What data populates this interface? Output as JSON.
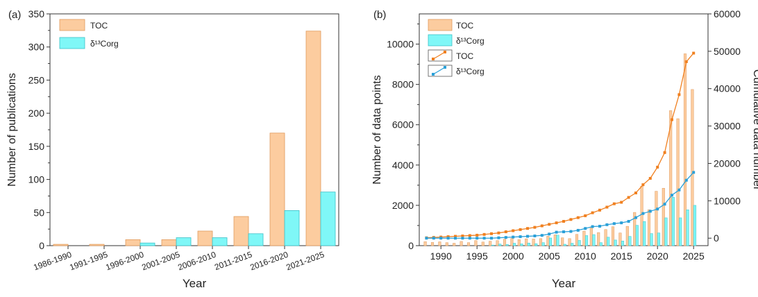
{
  "colors": {
    "toc_fill": "#fccc9f",
    "toc_stroke": "#e09a5c",
    "d13_fill": "#7ff7f7",
    "d13_stroke": "#3cc0c8",
    "toc_line": "#f08020",
    "d13_line": "#2aa0d8"
  },
  "chart_data": [
    {
      "type": "bar",
      "panel_label": "(a)",
      "categories": [
        "1986-1990",
        "1991-1995",
        "1996-2000",
        "2001-2005",
        "2006-2010",
        "2011-2015",
        "2016-2020",
        "2021-2025"
      ],
      "series": [
        {
          "name": "TOC",
          "values": [
            2,
            2,
            9,
            9,
            22,
            44,
            170,
            324
          ]
        },
        {
          "name": "δ¹³Corg",
          "values": [
            0,
            0,
            4,
            12,
            12,
            18,
            53,
            81
          ]
        }
      ],
      "xlabel": "Year",
      "ylabel": "Number of publications",
      "ylim": [
        0,
        350
      ],
      "yticks": [
        0,
        50,
        100,
        150,
        200,
        250,
        300,
        350
      ],
      "legend": "top-left",
      "grid": false
    },
    {
      "type": "bar",
      "panel_label": "(b)",
      "x": [
        1988,
        1989,
        1990,
        1991,
        1992,
        1993,
        1994,
        1995,
        1996,
        1997,
        1998,
        1999,
        2000,
        2001,
        2002,
        2003,
        2004,
        2005,
        2006,
        2007,
        2008,
        2009,
        2010,
        2011,
        2012,
        2013,
        2014,
        2015,
        2016,
        2017,
        2018,
        2019,
        2020,
        2021,
        2022,
        2023,
        2024,
        2025
      ],
      "series": [
        {
          "name": "TOC",
          "kind": "bar",
          "axis": "left",
          "values": [
            200,
            160,
            190,
            150,
            120,
            210,
            150,
            250,
            180,
            220,
            250,
            320,
            360,
            300,
            340,
            330,
            350,
            470,
            540,
            390,
            350,
            560,
            720,
            880,
            650,
            800,
            940,
            630,
            960,
            1650,
            2950,
            1780,
            2700,
            2850,
            6700,
            6300,
            9520,
            7750
          ]
        },
        {
          "name": "δ¹³Corg",
          "kind": "bar",
          "axis": "left",
          "values": [
            0,
            0,
            0,
            0,
            0,
            0,
            0,
            0,
            0,
            30,
            80,
            60,
            120,
            90,
            130,
            100,
            150,
            380,
            520,
            70,
            120,
            260,
            500,
            550,
            150,
            420,
            280,
            230,
            460,
            1010,
            1200,
            600,
            630,
            1380,
            2400,
            1380,
            1780,
            2000
          ]
        },
        {
          "name": "TOC",
          "kind": "line",
          "axis": "right",
          "values": [
            100,
            200,
            300,
            400,
            500,
            600,
            700,
            800,
            1000,
            1200,
            1400,
            1700,
            2000,
            2300,
            2600,
            2900,
            3300,
            3700,
            4100,
            4500,
            5000,
            5500,
            6000,
            6800,
            7500,
            8300,
            9200,
            9600,
            10900,
            12100,
            14300,
            16000,
            19000,
            22900,
            31700,
            38400,
            47200,
            49500
          ]
        },
        {
          "name": "δ¹³Corg",
          "kind": "line",
          "axis": "right",
          "values": [
            0,
            0,
            0,
            0,
            0,
            0,
            0,
            0,
            0,
            0,
            100,
            200,
            300,
            400,
            500,
            600,
            750,
            1100,
            1600,
            1700,
            1800,
            2100,
            2600,
            3100,
            3200,
            3600,
            3900,
            4100,
            4500,
            5500,
            6600,
            7200,
            7800,
            9100,
            11500,
            12900,
            15500,
            17600
          ]
        }
      ],
      "xlabel": "Year",
      "ylabel": "Number of data points",
      "ylabel_right": "Cumulative data number",
      "xlim": [
        1987,
        2027
      ],
      "xticks": [
        1990,
        1995,
        2000,
        2005,
        2010,
        2015,
        2020,
        2025
      ],
      "ylim": [
        0,
        11500
      ],
      "yticks": [
        0,
        2000,
        4000,
        6000,
        8000,
        10000
      ],
      "ylim_right": [
        -2000,
        60000
      ],
      "yticks_right": [
        0,
        10000,
        20000,
        30000,
        40000,
        50000,
        60000
      ],
      "legend": "top-left",
      "grid": false
    }
  ]
}
